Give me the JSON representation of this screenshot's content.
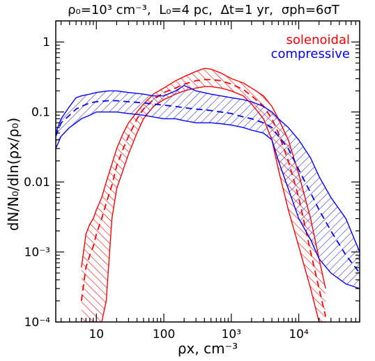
{
  "chart_data": {
    "type": "area",
    "title": {
      "parts": [
        "ρ₀=10³ cm⁻³,",
        "L₀=4 pc,",
        "Δt=1 yr,",
        "σph=6σT"
      ]
    },
    "xlabel": "ρx, cm⁻³",
    "ylabel": "dN/N₀/dln(ρx/ρ₀)",
    "xscale": "log",
    "yscale": "log",
    "xlim": [
      2.5,
      80000
    ],
    "ylim": [
      0.0001,
      2
    ],
    "x_ticks": [
      {
        "value": 10,
        "label": "10"
      },
      {
        "value": 100,
        "label": "100"
      },
      {
        "value": 1000,
        "label": "10³"
      },
      {
        "value": 10000,
        "label": "10⁴"
      }
    ],
    "y_ticks": [
      {
        "value": 1,
        "label": "1"
      },
      {
        "value": 0.1,
        "label": "0.1"
      },
      {
        "value": 0.01,
        "label": "0.01"
      },
      {
        "value": 0.001,
        "label": "10⁻³"
      },
      {
        "value": 0.0001,
        "label": "10⁻⁴"
      }
    ],
    "legend_position": "top-right",
    "grid": false,
    "series": [
      {
        "name": "solenoidal",
        "color": "#ff0000",
        "x": [
          6,
          7,
          8,
          9,
          10,
          12,
          14,
          17,
          20,
          25,
          30,
          40,
          50,
          70,
          100,
          150,
          200,
          300,
          400,
          500,
          700,
          1000,
          1500,
          2000,
          3000,
          4000,
          5000,
          7000,
          10000,
          15000,
          20000,
          25000
        ],
        "mean": [
          0.0002,
          0.0006,
          0.0009,
          0.0012,
          0.0018,
          0.003,
          0.005,
          0.009,
          0.017,
          0.03,
          0.045,
          0.08,
          0.11,
          0.15,
          0.19,
          0.22,
          0.25,
          0.28,
          0.29,
          0.29,
          0.28,
          0.25,
          0.21,
          0.17,
          0.12,
          0.08,
          0.05,
          0.02,
          0.006,
          0.001,
          0.0003,
          0.00012
        ],
        "upper": [
          0.0006,
          0.0018,
          0.0025,
          0.003,
          0.004,
          0.006,
          0.01,
          0.018,
          0.03,
          0.05,
          0.07,
          0.1,
          0.13,
          0.18,
          0.22,
          0.28,
          0.32,
          0.38,
          0.42,
          0.41,
          0.36,
          0.3,
          0.26,
          0.22,
          0.17,
          0.12,
          0.08,
          0.04,
          0.013,
          0.003,
          0.0008,
          0.0003
        ],
        "lower": [
          0.0001,
          0.0001,
          0.0001,
          0.0001,
          0.0001,
          0.0001,
          0.0002,
          0.003,
          0.008,
          0.015,
          0.025,
          0.05,
          0.08,
          0.12,
          0.15,
          0.18,
          0.2,
          0.22,
          0.23,
          0.23,
          0.22,
          0.2,
          0.17,
          0.13,
          0.08,
          0.04,
          0.015,
          0.004,
          0.0012,
          0.0003,
          0.0001,
          0.0001
        ]
      },
      {
        "name": "compressive",
        "color": "#0000ff",
        "x": [
          2.5,
          3,
          4,
          5,
          6,
          8,
          10,
          15,
          20,
          30,
          50,
          70,
          100,
          150,
          200,
          300,
          500,
          700,
          1000,
          1500,
          2000,
          3000,
          4000,
          5000,
          7000,
          10000,
          15000,
          20000,
          30000,
          50000,
          80000
        ],
        "mean": [
          0.045,
          0.07,
          0.09,
          0.11,
          0.12,
          0.135,
          0.14,
          0.145,
          0.145,
          0.14,
          0.135,
          0.13,
          0.125,
          0.12,
          0.115,
          0.11,
          0.105,
          0.1,
          0.095,
          0.085,
          0.08,
          0.07,
          0.06,
          0.045,
          0.03,
          0.015,
          0.007,
          0.004,
          0.002,
          0.0009,
          0.0005
        ],
        "upper": [
          0.05,
          0.08,
          0.12,
          0.16,
          0.17,
          0.18,
          0.19,
          0.2,
          0.2,
          0.19,
          0.18,
          0.17,
          0.17,
          0.2,
          0.24,
          0.2,
          0.18,
          0.17,
          0.16,
          0.15,
          0.14,
          0.12,
          0.1,
          0.08,
          0.06,
          0.04,
          0.022,
          0.012,
          0.006,
          0.003,
          0.001
        ],
        "lower": [
          0.03,
          0.045,
          0.06,
          0.07,
          0.08,
          0.09,
          0.1,
          0.1,
          0.1,
          0.095,
          0.09,
          0.085,
          0.08,
          0.08,
          0.075,
          0.07,
          0.07,
          0.068,
          0.065,
          0.06,
          0.055,
          0.05,
          0.04,
          0.02,
          0.008,
          0.003,
          0.0015,
          0.0008,
          0.0005,
          0.00035,
          0.0003
        ]
      }
    ]
  }
}
